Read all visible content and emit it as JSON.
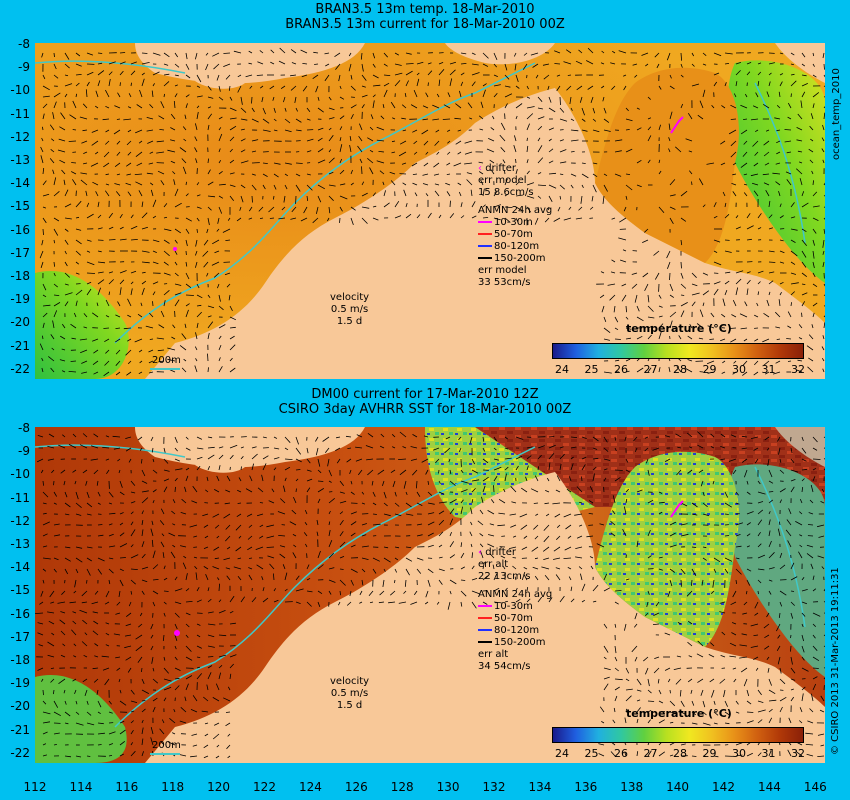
{
  "top": {
    "title_line1": "BRAN3.5 13m temp. 18-Mar-2010",
    "title_line2": "BRAN3.5 13m current for 18-Mar-2010 00Z",
    "drifter_label": "drifter",
    "drifter_err_label": "err model",
    "drifter_err_value": "15 8.6cm/s",
    "anmn_title": "ANMN 24h avg",
    "anmn_err_label": "err model",
    "anmn_err_value": "33 53cm/s",
    "velocity_label": "velocity",
    "velocity_scale": "0.5 m/s",
    "velocity_days": "1.5 d",
    "isobath_label": "200m",
    "colorbar_title": "temperature (°C)"
  },
  "bottom": {
    "title_line1": "DM00 current for 17-Mar-2010 12Z",
    "title_line2": "CSIRO 3day AVHRR SST for 18-Mar-2010 00Z",
    "drifter_label": "drifter",
    "drifter_err_label": "err alt",
    "drifter_err_value": "22 13cm/s",
    "anmn_title": "ANMN 24h avg",
    "anmn_err_label": "err alt",
    "anmn_err_value": "34 54cm/s",
    "velocity_label": "velocity",
    "velocity_scale": "0.5 m/s",
    "velocity_days": "1.5 d",
    "isobath_label": "200m",
    "colorbar_title": "temperature (°C)"
  },
  "depth_bands": [
    {
      "label": "10-30m",
      "color": "#ff00ff"
    },
    {
      "label": "50-70m",
      "color": "#ff2020"
    },
    {
      "label": "80-120m",
      "color": "#2030ff"
    },
    {
      "label": "150-200m",
      "color": "#000000"
    }
  ],
  "colorbar_ticks": [
    "24",
    "25",
    "26",
    "27",
    "28",
    "29",
    "30",
    "31",
    "32"
  ],
  "colorbar_colors": [
    "#1a1a8a",
    "#1f5fe0",
    "#20b0e0",
    "#30c8a0",
    "#60d040",
    "#b8e020",
    "#f0e820",
    "#f0c020",
    "#e89018",
    "#d06010",
    "#b03808",
    "#8a2008"
  ],
  "lat_ticks": [
    "-8",
    "-9",
    "-10",
    "-11",
    "-12",
    "-13",
    "-14",
    "-15",
    "-16",
    "-17",
    "-18",
    "-19",
    "-20",
    "-21",
    "-22"
  ],
  "lon_ticks": [
    "112",
    "114",
    "116",
    "118",
    "120",
    "122",
    "124",
    "126",
    "128",
    "130",
    "132",
    "134",
    "136",
    "138",
    "140",
    "142",
    "144",
    "146"
  ],
  "side_label_top": "ocean_temp_2010",
  "side_label_bottom": "© CSIRO 2013  31-Mar-2013 19:11:31",
  "colors": {
    "background": "#00c0f0",
    "land": "#f8c898",
    "isobath": "#40c8c8"
  }
}
